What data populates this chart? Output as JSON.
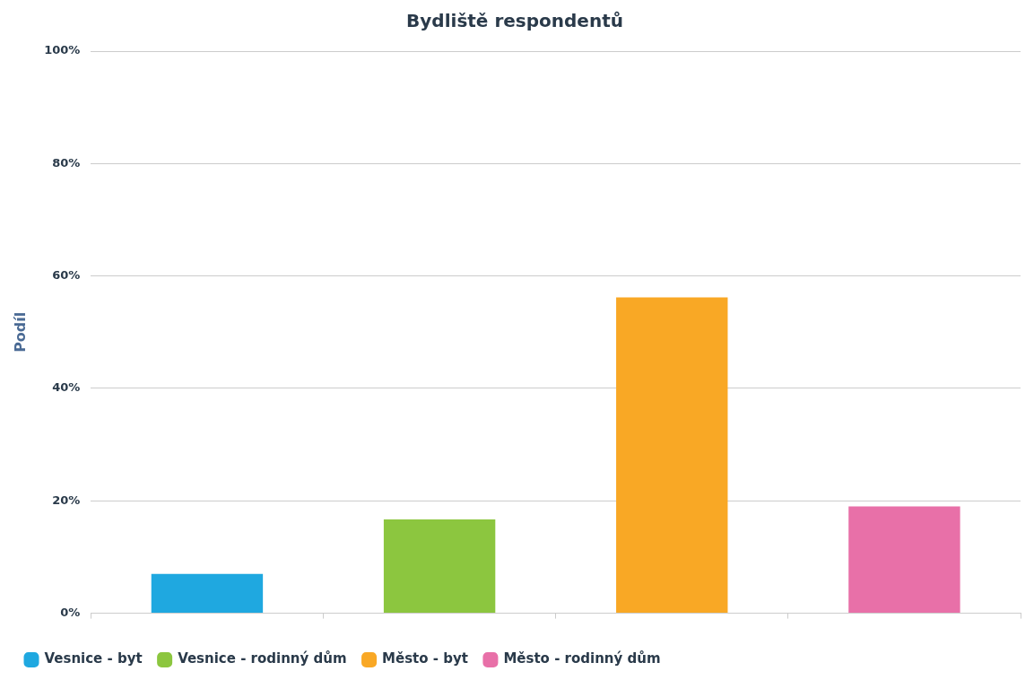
{
  "chart_data": {
    "type": "bar",
    "title": "Bydliště respondentů",
    "ylabel": "Podíl",
    "categories": [
      null,
      null,
      null,
      null
    ],
    "series": [
      {
        "name": "Vesnice - byt",
        "color": "#1fa8e0",
        "values": [
          7,
          null,
          null,
          null
        ]
      },
      {
        "name": "Vesnice - rodinný dům",
        "color": "#8cc63f",
        "values": [
          null,
          16.7,
          null,
          null
        ]
      },
      {
        "name": "Město - byt",
        "color": "#f9a825",
        "values": [
          null,
          null,
          56.2,
          null
        ]
      },
      {
        "name": "Město - rodinný dům",
        "color": "#e870a8",
        "values": [
          null,
          null,
          null,
          19
        ]
      }
    ],
    "ylim": [
      0,
      100
    ],
    "yticks": [
      {
        "value": 0,
        "label": "0%"
      },
      {
        "value": 20,
        "label": "20%"
      },
      {
        "value": 40,
        "label": "40%"
      },
      {
        "value": 60,
        "label": "60%"
      },
      {
        "value": 80,
        "label": "80%"
      },
      {
        "value": 100,
        "label": "100%"
      }
    ],
    "grid": "y",
    "legend": "bottom"
  }
}
